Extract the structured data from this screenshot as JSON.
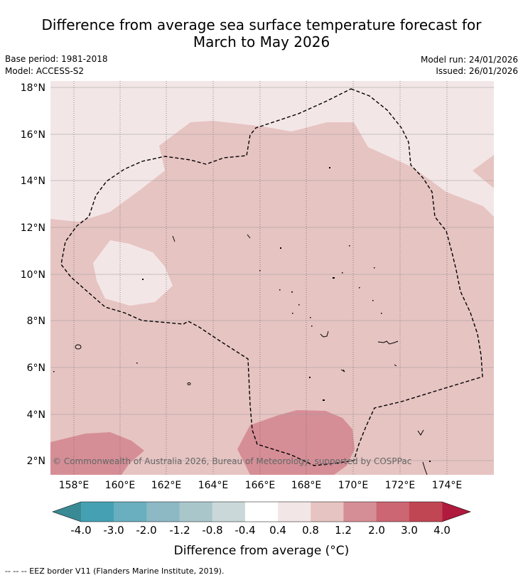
{
  "title_line1": "Difference from average sea surface temperature forecast for",
  "title_line2": "March to May 2026",
  "base_period": "Base period: 1981-2018",
  "model": "Model: ACCESS-S2",
  "model_run": "Model run: 24/01/2026",
  "issued": "Issued: 26/01/2026",
  "map": {
    "lat_labels": [
      "18°N",
      "16°N",
      "14°N",
      "12°N",
      "10°N",
      "8°N",
      "6°N",
      "4°N",
      "2°N"
    ],
    "lon_labels": [
      "158°E",
      "160°E",
      "162°E",
      "164°E",
      "166°E",
      "168°E",
      "170°E",
      "172°E",
      "174°E"
    ],
    "copyright": "© Commonwealth of Australia 2026, Bureau of Meteorology, supported by COSPPac"
  },
  "colorbar": {
    "tick_labels": [
      "-4.0",
      "-3.0",
      "-2.0",
      "-1.2",
      "-0.8",
      "-0.4",
      "0.4",
      "0.8",
      "1.2",
      "2.0",
      "3.0",
      "4.0"
    ],
    "bins": [
      {
        "color": "#46a0b3"
      },
      {
        "color": "#6aafbf"
      },
      {
        "color": "#8db9c5"
      },
      {
        "color": "#a9c6cb"
      },
      {
        "color": "#cbd8da"
      },
      {
        "color": "#ffffff"
      },
      {
        "color": "#f3e6e6"
      },
      {
        "color": "#e6c4c2"
      },
      {
        "color": "#d68e96"
      },
      {
        "color": "#cb6672"
      },
      {
        "color": "#c04654"
      }
    ],
    "under_color": "#3a8a96",
    "over_color": "#b01a3c",
    "label": "Difference from average (°C)"
  },
  "footer": "-- -- -- EEZ border V11 (Flanders Marine Institute, 2019).",
  "colors": {
    "light": "#f3e6e6",
    "mid": "#e6c4c2",
    "strong": "#d68e96"
  }
}
